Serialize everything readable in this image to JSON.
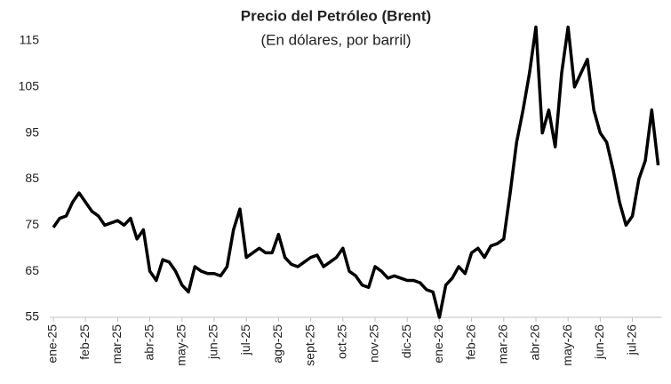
{
  "chart_data": {
    "type": "line",
    "title": "Precio del Petróleo (Brent)",
    "subtitle": "(En dólares, por barril)",
    "categories": [
      "ene-25",
      null,
      null,
      null,
      null,
      "feb-25",
      null,
      null,
      null,
      null,
      "mar-25",
      null,
      null,
      null,
      null,
      "abr-25",
      null,
      null,
      null,
      null,
      "may-25",
      null,
      null,
      null,
      null,
      "jun-25",
      null,
      null,
      null,
      null,
      "jul-25",
      null,
      null,
      null,
      null,
      "ago-25",
      null,
      null,
      null,
      null,
      "sept-25",
      null,
      null,
      null,
      null,
      "oct-25",
      null,
      null,
      null,
      null,
      "nov-25",
      null,
      null,
      null,
      null,
      "dic-25",
      null,
      null,
      null,
      null,
      "ene-26",
      null,
      null,
      null,
      null,
      "feb-26",
      null,
      null,
      null,
      null,
      "mar-26",
      null,
      null,
      null,
      null,
      "abr-26",
      null,
      null,
      null,
      null,
      "may-26",
      null,
      null,
      null,
      null,
      "jun-26",
      null,
      null,
      null,
      null,
      "jul-26",
      null,
      null,
      null,
      null
    ],
    "series": [
      {
        "name": "Brent",
        "color": "#000000",
        "values": [
          74.5,
          76.5,
          77,
          80,
          82,
          80,
          78,
          77,
          75,
          75.5,
          76,
          75,
          76.5,
          72,
          74,
          65,
          63,
          67.5,
          67,
          65,
          62,
          60.5,
          66,
          65,
          64.5,
          64.5,
          64,
          66,
          74,
          78.5,
          68,
          69,
          70,
          69,
          69,
          73,
          68,
          66.5,
          66,
          67,
          68,
          68.5,
          66,
          67,
          68,
          70,
          65,
          64,
          62,
          61.5,
          66,
          65,
          63.5,
          64,
          63.5,
          63,
          63,
          62.5,
          61,
          60.5,
          55,
          62,
          63.5,
          66,
          64.5,
          69,
          70,
          68,
          70.5,
          71,
          72,
          82,
          93,
          100,
          108,
          118,
          95,
          100,
          92,
          108,
          118,
          105,
          108,
          111,
          100,
          95,
          93,
          87,
          80,
          75,
          77,
          85,
          89,
          100,
          88
        ]
      }
    ],
    "ylim": [
      55,
      115
    ],
    "yticks": [
      55,
      65,
      75,
      85,
      95,
      105,
      115
    ],
    "grid": false
  }
}
